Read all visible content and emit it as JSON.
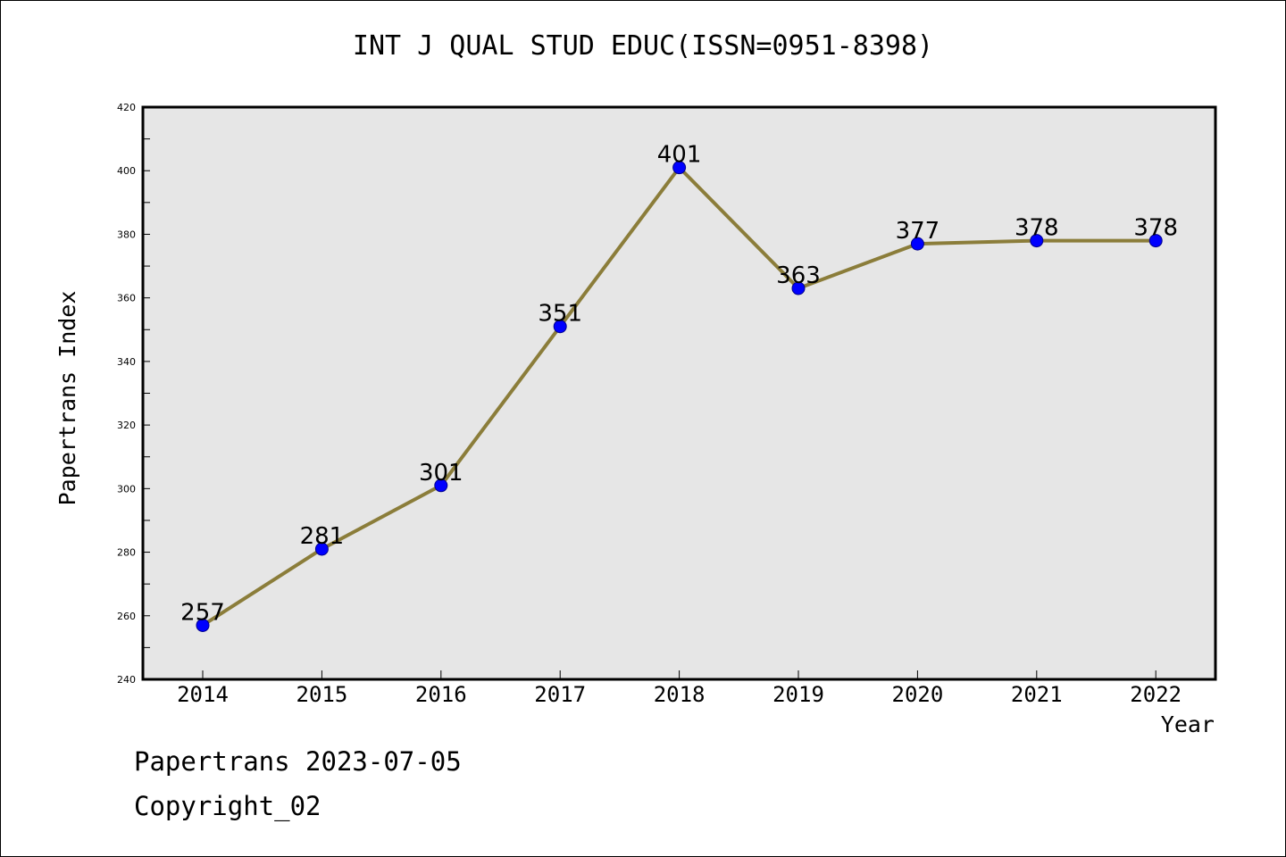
{
  "chart_data": {
    "type": "line",
    "title": "INT J QUAL STUD EDUC(ISSN=0951-8398)",
    "xlabel": "Year",
    "ylabel": "Papertrans Index",
    "categories": [
      "2014",
      "2015",
      "2016",
      "2017",
      "2018",
      "2019",
      "2020",
      "2021",
      "2022"
    ],
    "series": [
      {
        "values": [
          257,
          281,
          301,
          351,
          401,
          363,
          377,
          378,
          378
        ]
      }
    ],
    "ylim": [
      240,
      420
    ],
    "yticks": [
      240,
      260,
      280,
      300,
      320,
      340,
      360,
      380,
      400,
      420
    ],
    "grid": false,
    "colors": {
      "line": "#8B7D3A",
      "marker": "#0000FF",
      "plot_background": "#E6E6E6"
    }
  },
  "footer": {
    "source": "Papertrans 2023-07-05",
    "copyright": "Copyright_02"
  }
}
